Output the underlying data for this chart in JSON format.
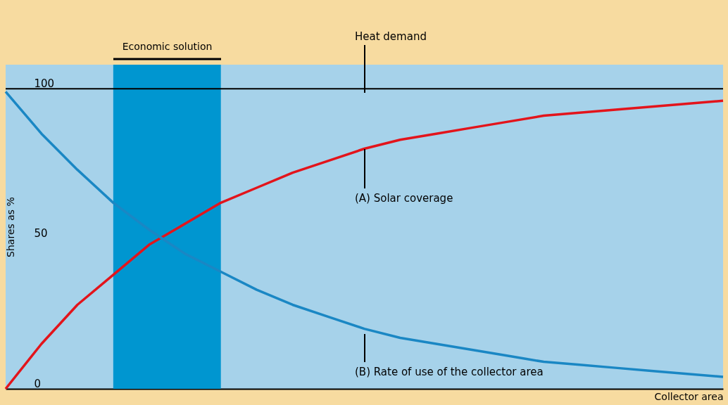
{
  "chart_data": {
    "type": "line",
    "xlabel": "Collector area",
    "ylabel": "Shares as %",
    "categories": [
      null,
      null,
      null,
      null,
      null,
      null,
      null,
      null,
      null,
      null,
      null,
      null,
      null,
      null,
      null,
      null,
      null,
      null,
      null,
      null,
      null
    ],
    "series": [
      {
        "color": "#e3141b",
        "values": [
          0,
          15,
          28,
          38,
          48,
          55,
          62,
          67,
          72,
          76,
          80,
          83,
          85,
          87,
          89,
          91,
          92,
          93,
          94,
          95,
          96
        ]
      },
      {
        "color": "#1a87c4",
        "values": [
          99,
          85,
          73,
          62,
          53,
          45,
          39,
          33,
          28,
          24,
          20,
          17,
          15,
          13,
          11,
          9,
          8,
          7,
          6,
          5,
          4
        ]
      }
    ],
    "ylim": [
      0,
      108
    ],
    "yticks": [
      0,
      50,
      100
    ],
    "ref_lines": [
      {
        "axis": "y",
        "value": 100,
        "color": "#000000"
      }
    ],
    "annotations": [
      "Economic solution",
      "Heat demand",
      "(A) Solar coverage",
      "(B) Rate of use of the collector area"
    ]
  }
}
